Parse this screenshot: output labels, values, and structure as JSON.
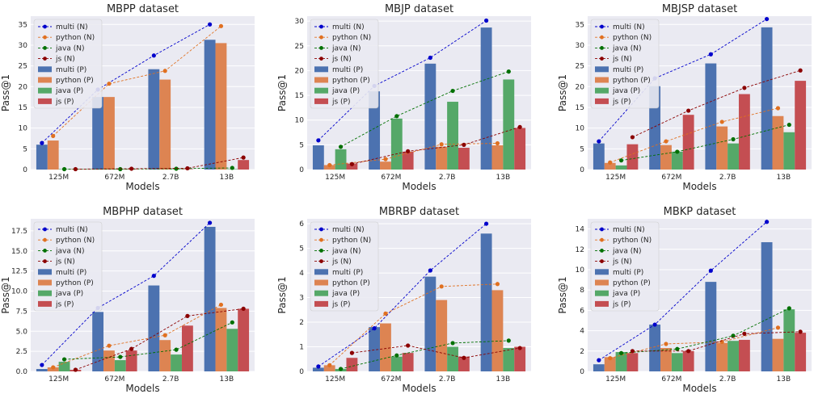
{
  "figure": {
    "x_axis_label": "Models",
    "y_axis_label": "Pass@1",
    "categories": [
      "125M",
      "672M",
      "2.7B",
      "13B"
    ],
    "legend_labels": [
      "multi (N)",
      "python (N)",
      "java (N)",
      "js (N)",
      "multi (P)",
      "python (P)",
      "java (P)",
      "js (P)"
    ]
  },
  "colors": {
    "background": "#eaeaf2",
    "grid": "#ffffff",
    "multi_bar": "#4c72b0",
    "python_bar": "#dd8452",
    "java_bar": "#55a868",
    "js_bar": "#c44e52",
    "multi_line": "#0000cc",
    "python_line": "#e07020",
    "java_line": "#007000",
    "js_line": "#8b0000"
  },
  "chart_data": [
    {
      "type": "bar",
      "title": "MBPP dataset",
      "xlabel": "Models",
      "ylabel": "Pass@1",
      "categories": [
        "125M",
        "672M",
        "2.7B",
        "13B"
      ],
      "ylim": [
        0,
        37
      ],
      "yticks": [
        0,
        5,
        10,
        15,
        20,
        25,
        30,
        35
      ],
      "grid": true,
      "legend": "top-left",
      "bar_series": [
        {
          "name": "multi (P)",
          "values": [
            6.0,
            17.5,
            24.2,
            31.3
          ]
        },
        {
          "name": "python (P)",
          "values": [
            7.0,
            17.5,
            21.7,
            30.5
          ]
        },
        {
          "name": "java (P)",
          "values": [
            0.1,
            0.1,
            0.1,
            0.1
          ]
        },
        {
          "name": "js (P)",
          "values": [
            0.1,
            0.1,
            0.1,
            2.3
          ]
        }
      ],
      "line_series": [
        {
          "name": "multi (N)",
          "values": [
            6.4,
            19.3,
            27.5,
            35.0
          ]
        },
        {
          "name": "python (N)",
          "values": [
            8.1,
            20.7,
            23.8,
            34.6
          ]
        },
        {
          "name": "java (N)",
          "values": [
            0.1,
            0.1,
            0.2,
            0.4
          ]
        },
        {
          "name": "js (N)",
          "values": [
            0.1,
            0.2,
            0.3,
            2.9
          ]
        }
      ]
    },
    {
      "type": "bar",
      "title": "MBJP dataset",
      "xlabel": "Models",
      "ylabel": "Pass@1",
      "categories": [
        "125M",
        "672M",
        "2.7B",
        "13B"
      ],
      "ylim": [
        0,
        31
      ],
      "yticks": [
        0,
        5,
        10,
        15,
        20,
        25,
        30
      ],
      "grid": true,
      "legend": "top-left",
      "bar_series": [
        {
          "name": "multi (P)",
          "values": [
            4.9,
            15.8,
            21.4,
            28.7
          ]
        },
        {
          "name": "python (P)",
          "values": [
            0.9,
            1.6,
            4.6,
            4.9
          ]
        },
        {
          "name": "java (P)",
          "values": [
            4.1,
            10.3,
            13.7,
            18.2
          ]
        },
        {
          "name": "js (P)",
          "values": [
            1.2,
            3.6,
            4.4,
            8.4
          ]
        }
      ],
      "line_series": [
        {
          "name": "multi (N)",
          "values": [
            5.9,
            16.9,
            22.6,
            30.1
          ]
        },
        {
          "name": "python (N)",
          "values": [
            0.9,
            2.1,
            5.1,
            5.3
          ]
        },
        {
          "name": "java (N)",
          "values": [
            4.6,
            10.8,
            15.9,
            19.8
          ]
        },
        {
          "name": "js (N)",
          "values": [
            1.1,
            3.7,
            5.0,
            8.6
          ]
        }
      ]
    },
    {
      "type": "bar",
      "title": "MBJSP dataset",
      "xlabel": "Models",
      "ylabel": "Pass@1",
      "categories": [
        "125M",
        "672M",
        "2.7B",
        "13B"
      ],
      "ylim": [
        0,
        37
      ],
      "yticks": [
        0,
        5,
        10,
        15,
        20,
        25,
        30,
        35
      ],
      "grid": true,
      "legend": "top-left",
      "bar_series": [
        {
          "name": "multi (P)",
          "values": [
            6.3,
            20.1,
            25.6,
            34.3
          ]
        },
        {
          "name": "python (P)",
          "values": [
            1.6,
            5.9,
            10.4,
            12.9
          ]
        },
        {
          "name": "java (P)",
          "values": [
            1.0,
            4.3,
            6.3,
            9.0
          ]
        },
        {
          "name": "js (P)",
          "values": [
            6.1,
            13.2,
            18.2,
            21.4
          ]
        }
      ],
      "line_series": [
        {
          "name": "multi (N)",
          "values": [
            6.8,
            22.0,
            27.8,
            36.3
          ]
        },
        {
          "name": "python (N)",
          "values": [
            1.7,
            6.8,
            11.5,
            14.8
          ]
        },
        {
          "name": "java (N)",
          "values": [
            2.2,
            4.3,
            7.3,
            10.8
          ]
        },
        {
          "name": "js (N)",
          "values": [
            7.8,
            14.2,
            19.7,
            23.9
          ]
        }
      ]
    },
    {
      "type": "bar",
      "title": "MBPHP dataset",
      "xlabel": "Models",
      "ylabel": "Pass@1",
      "categories": [
        "125M",
        "672M",
        "2.7B",
        "13B"
      ],
      "ylim": [
        0,
        19
      ],
      "yticks": [
        0.0,
        2.5,
        5.0,
        7.5,
        10.0,
        12.5,
        15.0,
        17.5
      ],
      "grid": true,
      "legend": "top-left",
      "bar_series": [
        {
          "name": "multi (P)",
          "values": [
            0.3,
            7.4,
            10.7,
            18.0
          ]
        },
        {
          "name": "python (P)",
          "values": [
            0.5,
            2.6,
            3.9,
            7.9
          ]
        },
        {
          "name": "java (P)",
          "values": [
            1.2,
            1.4,
            2.1,
            5.3
          ]
        },
        {
          "name": "js (P)",
          "values": [
            0.2,
            2.6,
            5.7,
            7.8
          ]
        }
      ],
      "line_series": [
        {
          "name": "multi (N)",
          "values": [
            0.8,
            7.9,
            11.9,
            18.5
          ]
        },
        {
          "name": "python (N)",
          "values": [
            0.5,
            3.2,
            4.5,
            8.3
          ]
        },
        {
          "name": "java (N)",
          "values": [
            1.5,
            1.8,
            2.7,
            6.1
          ]
        },
        {
          "name": "js (N)",
          "values": [
            0.2,
            2.8,
            6.9,
            7.8
          ]
        }
      ]
    },
    {
      "type": "bar",
      "title": "MBRBP dataset",
      "xlabel": "Models",
      "ylabel": "Pass@1",
      "categories": [
        "125M",
        "672M",
        "2.7B",
        "13B"
      ],
      "ylim": [
        0,
        6.2
      ],
      "yticks": [
        0,
        1,
        2,
        3,
        4,
        5,
        6
      ],
      "grid": true,
      "legend": "top-left",
      "bar_series": [
        {
          "name": "multi (P)",
          "values": [
            0.15,
            1.8,
            3.85,
            5.6
          ]
        },
        {
          "name": "python (P)",
          "values": [
            0.25,
            1.95,
            2.9,
            3.3
          ]
        },
        {
          "name": "java (P)",
          "values": [
            0.1,
            0.6,
            1.0,
            0.95
          ]
        },
        {
          "name": "js (P)",
          "values": [
            0.55,
            0.75,
            0.6,
            1.0
          ]
        }
      ],
      "line_series": [
        {
          "name": "multi (N)",
          "values": [
            0.2,
            1.75,
            4.1,
            6.0
          ]
        },
        {
          "name": "python (N)",
          "values": [
            0.25,
            2.35,
            3.45,
            3.55
          ]
        },
        {
          "name": "java (N)",
          "values": [
            0.1,
            0.65,
            1.15,
            1.25
          ]
        },
        {
          "name": "js (N)",
          "values": [
            0.75,
            1.05,
            0.55,
            0.95
          ]
        }
      ]
    },
    {
      "type": "bar",
      "title": "MBKP dataset",
      "xlabel": "Models",
      "ylabel": "Pass@1",
      "categories": [
        "125M",
        "672M",
        "2.7B",
        "13B"
      ],
      "ylim": [
        0,
        15
      ],
      "yticks": [
        0,
        2,
        4,
        6,
        8,
        10,
        12,
        14
      ],
      "grid": true,
      "legend": "top-left",
      "bar_series": [
        {
          "name": "multi (P)",
          "values": [
            0.7,
            4.6,
            8.8,
            12.7
          ]
        },
        {
          "name": "python (P)",
          "values": [
            1.4,
            2.3,
            2.8,
            3.2
          ]
        },
        {
          "name": "java (P)",
          "values": [
            1.9,
            1.8,
            3.0,
            6.1
          ]
        },
        {
          "name": "js (P)",
          "values": [
            1.8,
            2.0,
            3.1,
            3.8
          ]
        }
      ],
      "line_series": [
        {
          "name": "multi (N)",
          "values": [
            1.1,
            4.6,
            9.9,
            14.7
          ]
        },
        {
          "name": "python (N)",
          "values": [
            1.3,
            2.7,
            2.9,
            4.3
          ]
        },
        {
          "name": "java (N)",
          "values": [
            1.8,
            2.2,
            3.5,
            6.2
          ]
        },
        {
          "name": "js (N)",
          "values": [
            2.0,
            2.0,
            3.7,
            3.9
          ]
        }
      ]
    }
  ]
}
